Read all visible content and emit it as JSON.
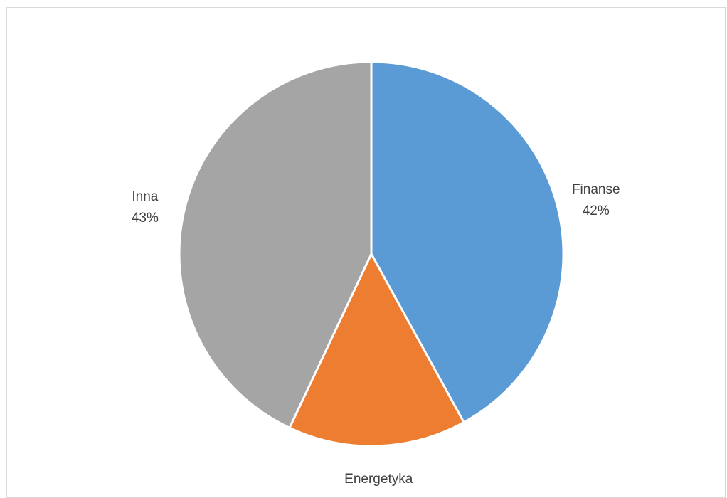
{
  "chart_data": {
    "type": "pie",
    "title": "",
    "legend": "none",
    "slices": [
      {
        "label": "Finanse",
        "value": 42,
        "value_label": "42%",
        "color": "#5b9bd5"
      },
      {
        "label": "Energetyka",
        "value": 15,
        "value_label": "15%",
        "color": "#ed7d31"
      },
      {
        "label": "Inna",
        "value": 43,
        "value_label": "43%",
        "color": "#a5a5a5"
      }
    ]
  }
}
